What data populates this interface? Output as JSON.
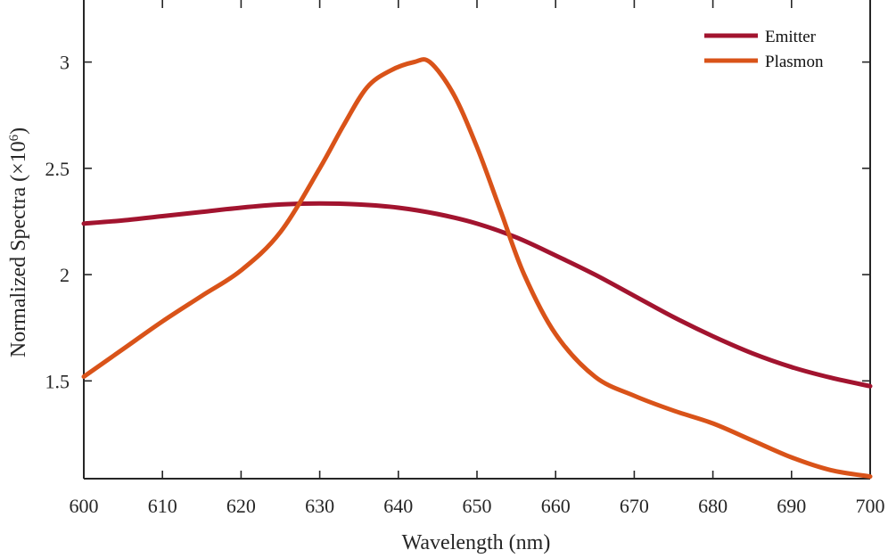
{
  "chart_data": {
    "type": "line",
    "title": "",
    "xlabel": "Wavelength (nm)",
    "ylabel_text": "Normalized Spectra (×10",
    "ylabel_exponent": "6",
    "ylabel_suffix": ")",
    "xlim": [
      600,
      700
    ],
    "ylim": [
      1.04,
      3.25
    ],
    "x_ticks": [
      600,
      610,
      620,
      630,
      640,
      650,
      660,
      670,
      680,
      690,
      700
    ],
    "y_ticks": [
      1.5,
      2,
      2.5,
      3
    ],
    "y_tick_labels": [
      "1.5",
      "2",
      "2.5",
      "3"
    ],
    "grid": false,
    "legend_position": "top-right",
    "series": [
      {
        "name": "Emitter",
        "color": "#A2142F",
        "x": [
          600,
          605,
          610,
          615,
          620,
          625,
          630,
          635,
          640,
          645,
          650,
          655,
          660,
          665,
          670,
          675,
          680,
          685,
          690,
          695,
          700
        ],
        "y": [
          2.24,
          2.255,
          2.275,
          2.295,
          2.315,
          2.33,
          2.335,
          2.33,
          2.315,
          2.285,
          2.24,
          2.175,
          2.09,
          2.0,
          1.9,
          1.8,
          1.71,
          1.63,
          1.565,
          1.515,
          1.475
        ]
      },
      {
        "name": "Plasmon",
        "color": "#D95319",
        "x": [
          600,
          605,
          610,
          615,
          620,
          625,
          630,
          633,
          636,
          639,
          642,
          644,
          647,
          650,
          653,
          656,
          660,
          665,
          670,
          675,
          680,
          685,
          690,
          695,
          700
        ],
        "y": [
          1.52,
          1.65,
          1.78,
          1.9,
          2.02,
          2.2,
          2.5,
          2.7,
          2.88,
          2.96,
          3.0,
          3.0,
          2.85,
          2.6,
          2.3,
          2.0,
          1.72,
          1.52,
          1.43,
          1.36,
          1.3,
          1.22,
          1.14,
          1.08,
          1.05
        ]
      }
    ]
  }
}
